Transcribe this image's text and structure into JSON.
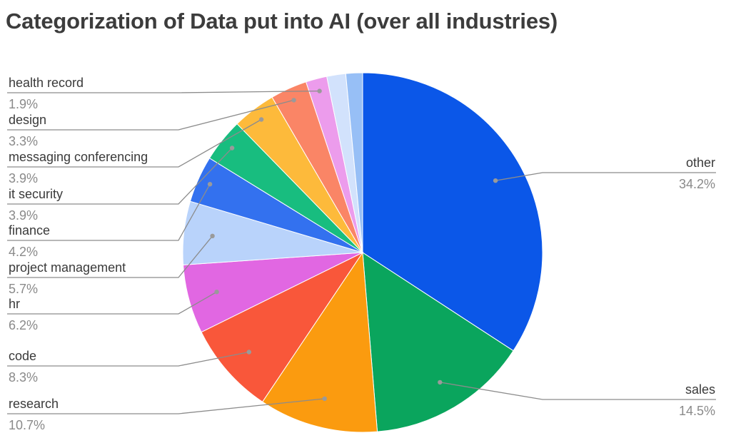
{
  "chart_data": {
    "type": "pie",
    "title": "Categorization of Data put into AI (over all industries)",
    "slices": [
      {
        "label": "other",
        "value": 34.2,
        "display": "34.2%",
        "color": "#0b57e8"
      },
      {
        "label": "sales",
        "value": 14.5,
        "display": "14.5%",
        "color": "#0aa55d"
      },
      {
        "label": "research",
        "value": 10.7,
        "display": "10.7%",
        "color": "#fb9b0f"
      },
      {
        "label": "code",
        "value": 8.3,
        "display": "8.3%",
        "color": "#f9573a"
      },
      {
        "label": "hr",
        "value": 6.2,
        "display": "6.2%",
        "color": "#e167e2"
      },
      {
        "label": "project management",
        "value": 5.7,
        "display": "5.7%",
        "color": "#b9d3fb"
      },
      {
        "label": "finance",
        "value": 4.2,
        "display": "4.2%",
        "color": "#3371ef"
      },
      {
        "label": "it security",
        "value": 3.9,
        "display": "3.9%",
        "color": "#18bd7f"
      },
      {
        "label": "messaging conferencing",
        "value": 3.9,
        "display": "3.9%",
        "color": "#fdba3b"
      },
      {
        "label": "design",
        "value": 3.3,
        "display": "3.3%",
        "color": "#fa8566"
      },
      {
        "label": "health record",
        "value": 1.9,
        "display": "1.9%",
        "color": "#ec9cec"
      },
      {
        "label": "",
        "value": 1.7,
        "display": "",
        "color": "#d2e2fc"
      },
      {
        "label": "",
        "value": 1.5,
        "display": "",
        "color": "#97bff6"
      }
    ]
  }
}
